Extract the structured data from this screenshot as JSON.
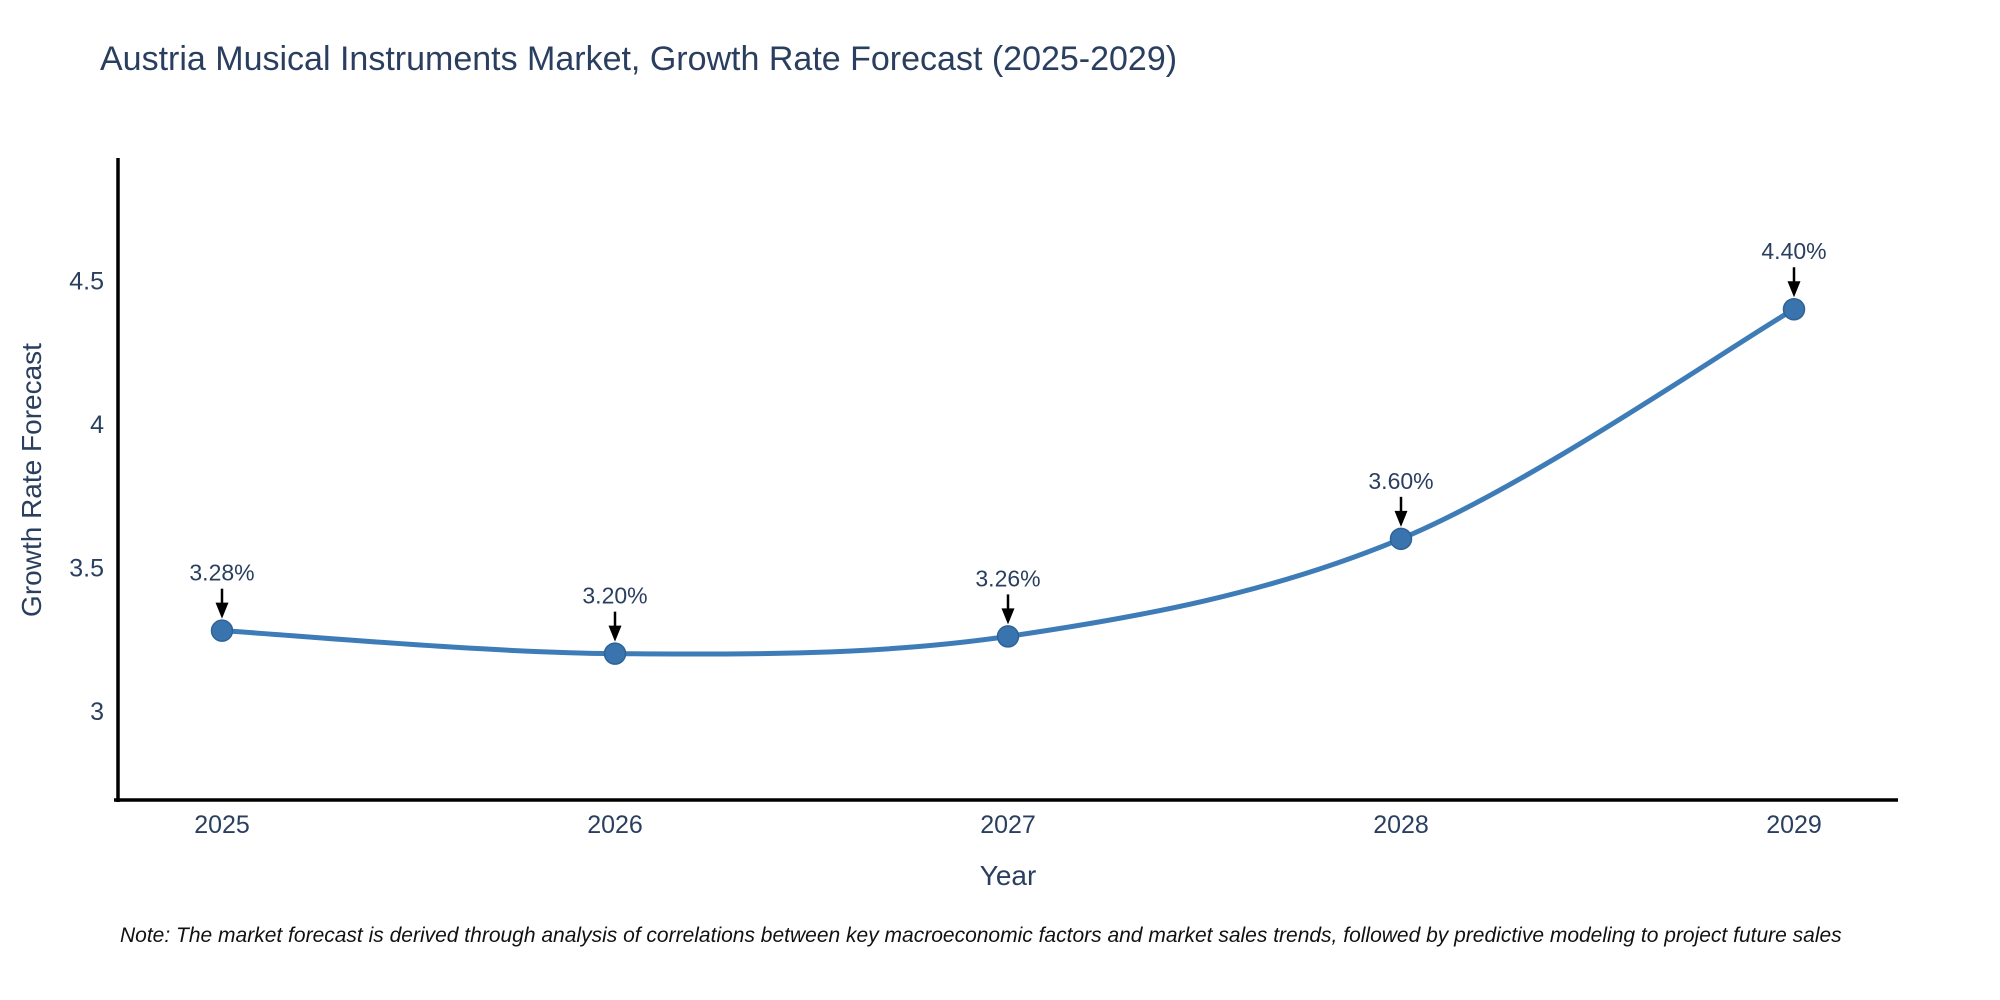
{
  "page": {
    "background": "#ffffff"
  },
  "header": {
    "title": "Austria Musical Instruments Market, Growth Rate Forecast (2025-2029)"
  },
  "footer": {
    "note": "Note: The market forecast is derived through analysis of correlations between key macroeconomic factors and market sales trends, followed by predictive modeling to project future sales"
  },
  "colors": {
    "background": "#ffffff",
    "title_text": "#2a3f5f",
    "tick_text": "#2a3f5f",
    "annotation_text": "#2a3f5f",
    "axis_line": "#000000",
    "series_line": "#3e7cb8",
    "marker_fill": "#3a74ae",
    "marker_edge": "#2f6296",
    "arrow": "#000000",
    "note_text": "#111111"
  },
  "chart_data": {
    "type": "line",
    "title": "Austria Musical Instruments Market, Growth Rate Forecast (2025-2029)",
    "xlabel": "Year",
    "ylabel": "Growth Rate Forecast",
    "x": [
      "2025",
      "2026",
      "2027",
      "2028",
      "2029"
    ],
    "series": [
      {
        "name": "Growth Rate Forecast",
        "values": [
          3.28,
          3.2,
          3.26,
          3.6,
          4.4
        ]
      }
    ],
    "point_labels": [
      "3.28%",
      "3.20%",
      "3.26%",
      "3.60%",
      "4.40%"
    ],
    "ylim": [
      2.69,
      4.92
    ],
    "yticks": [
      3,
      3.5,
      4,
      4.5
    ],
    "ytick_labels": [
      "3",
      "3.5",
      "4",
      "4.5"
    ],
    "line_shape": "spline",
    "grid": false,
    "legend": false,
    "annotations_have_arrows": true
  }
}
